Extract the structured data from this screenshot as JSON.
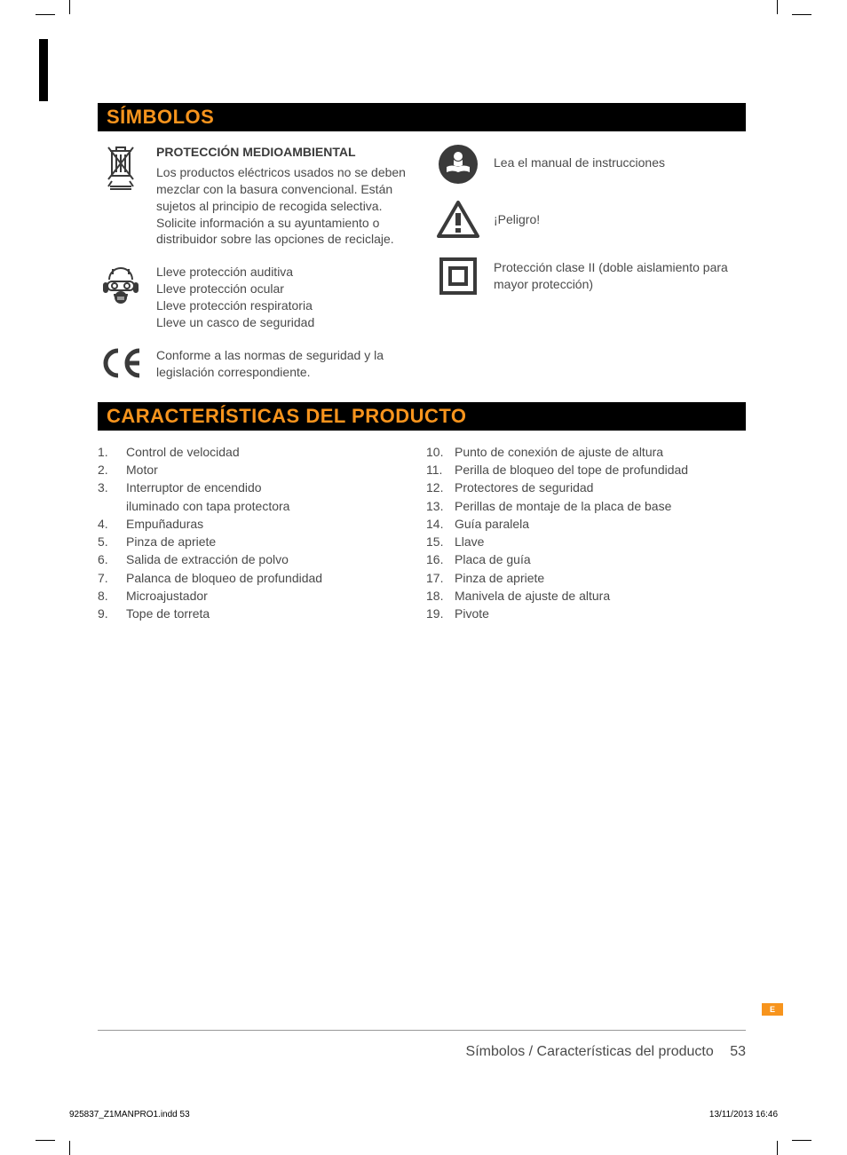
{
  "colors": {
    "accent": "#f7941d",
    "black": "#000000",
    "text": "#4a4a4a",
    "rule": "#999999",
    "bg": "#ffffff"
  },
  "section1": {
    "title": "SÍMBOLOS"
  },
  "symbols": {
    "left": [
      {
        "icon": "weee-bin-icon",
        "heading": "PROTECCIÓN MEDIOAMBIENTAL",
        "body": "Los productos eléctricos usados no se deben mezclar con la basura convencional. Están sujetos al principio de recogida selectiva. Solicite información a su ayuntamiento o distribuidor sobre las opciones de reciclaje."
      },
      {
        "icon": "ppe-icon",
        "lines": [
          "Lleve protección auditiva",
          "Lleve protección ocular",
          "Lleve protección respiratoria",
          "Lleve un casco de seguridad"
        ]
      },
      {
        "icon": "ce-mark-icon",
        "body": "Conforme a las normas de seguridad y la legislación correspondiente."
      }
    ],
    "right": [
      {
        "icon": "read-manual-icon",
        "body": "Lea el manual de instrucciones"
      },
      {
        "icon": "warning-icon",
        "body": "¡Peligro!"
      },
      {
        "icon": "class-ii-icon",
        "body": "Protección clase II (doble aislamiento para mayor protección)"
      }
    ]
  },
  "section2": {
    "title": "CARACTERÍSTICAS DEL PRODUCTO"
  },
  "features": {
    "col1": [
      {
        "n": "1.",
        "t": "Control de velocidad"
      },
      {
        "n": "2.",
        "t": "Motor"
      },
      {
        "n": "3.",
        "t": "Interruptor de encendido",
        "sub": "iluminado con tapa protectora"
      },
      {
        "n": "4.",
        "t": "Empuñaduras"
      },
      {
        "n": "5.",
        "t": "Pinza de apriete"
      },
      {
        "n": "6.",
        "t": "Salida de extracción de polvo"
      },
      {
        "n": "7.",
        "t": "Palanca de bloqueo de profundidad"
      },
      {
        "n": "8.",
        "t": "Microajustador"
      },
      {
        "n": "9.",
        "t": "Tope de torreta"
      }
    ],
    "col2": [
      {
        "n": "10.",
        "t": "Punto de conexión de ajuste de altura"
      },
      {
        "n": "11.",
        "t": "Perilla de bloqueo del tope de profundidad"
      },
      {
        "n": "12.",
        "t": "Protectores de seguridad"
      },
      {
        "n": "13.",
        "t": "Perillas de montaje de la placa de base"
      },
      {
        "n": "14.",
        "t": "Guía paralela"
      },
      {
        "n": "15.",
        "t": "Llave"
      },
      {
        "n": "16.",
        "t": "Placa de guía"
      },
      {
        "n": "17.",
        "t": "Pinza de apriete"
      },
      {
        "n": "18.",
        "t": "Manivela de ajuste de altura"
      },
      {
        "n": "19.",
        "t": "Pivote"
      }
    ]
  },
  "langtab": "E",
  "footer": {
    "label": "Símbolos / Características del producto",
    "page": "53"
  },
  "slug": {
    "left": "925837_Z1MANPRO1.indd   53",
    "right": "13/11/2013   16:46"
  }
}
